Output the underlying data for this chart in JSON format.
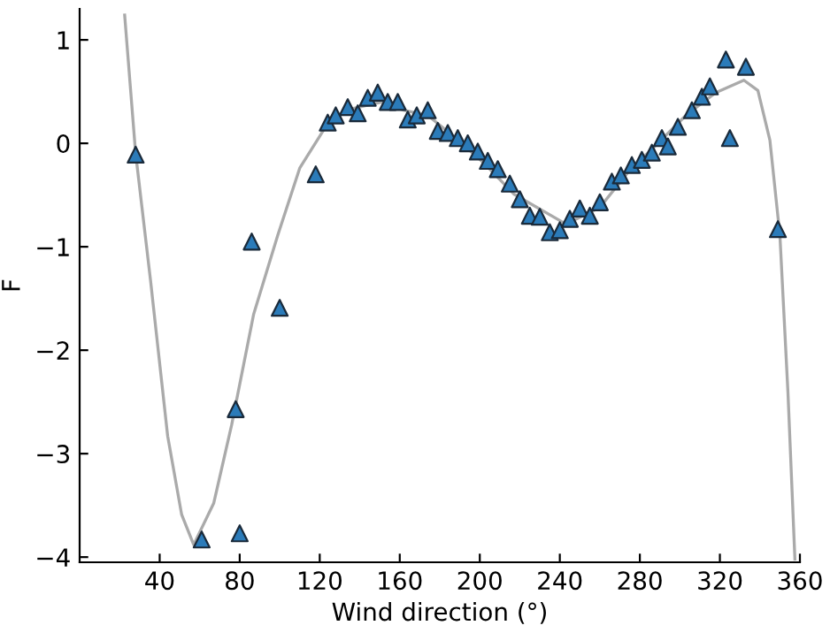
{
  "chart_data": {
    "type": "scatter",
    "xlabel": "Wind direction (°)",
    "ylabel": "F",
    "xlim": [
      0,
      360
    ],
    "ylim": [
      -4.05,
      1.3
    ],
    "xticks": [
      40,
      80,
      120,
      160,
      200,
      240,
      280,
      320,
      360
    ],
    "yticks": [
      {
        "value": -4,
        "label": "−4"
      },
      {
        "value": -3,
        "label": "−3"
      },
      {
        "value": -2,
        "label": "−2"
      },
      {
        "value": -1,
        "label": "−1"
      },
      0,
      1
    ],
    "grid": false,
    "legend": false,
    "series": [
      {
        "marker": "triangle",
        "color": "#2b7bb9",
        "x": [
          28,
          61,
          78,
          80,
          86,
          100,
          118,
          124,
          128,
          134,
          139,
          144,
          149,
          154,
          159,
          164,
          168.5,
          174,
          179,
          184,
          189,
          194,
          199,
          204,
          209,
          215,
          220,
          225,
          230,
          235,
          240,
          245,
          250,
          255,
          260,
          266,
          270.5,
          276,
          281,
          286,
          291,
          294,
          299,
          306,
          311,
          315,
          323,
          325,
          333,
          349
        ],
        "values": [
          -0.11,
          -3.83,
          -2.57,
          -3.77,
          -0.95,
          -1.59,
          -0.3,
          0.2,
          0.27,
          0.35,
          0.29,
          0.44,
          0.49,
          0.4,
          0.4,
          0.23,
          0.27,
          0.32,
          0.12,
          0.1,
          0.05,
          0.0,
          -0.08,
          -0.17,
          -0.25,
          -0.39,
          -0.54,
          -0.7,
          -0.71,
          -0.86,
          -0.84,
          -0.73,
          -0.63,
          -0.7,
          -0.57,
          -0.37,
          -0.31,
          -0.21,
          -0.16,
          -0.09,
          0.05,
          -0.03,
          0.16,
          0.32,
          0.45,
          0.55,
          0.81,
          0.05,
          0.74,
          -0.83
        ]
      },
      {
        "type": "line",
        "marker": "none",
        "line_style": "solid",
        "color": "#aaaaaa",
        "x": [
          22.5,
          28,
          35.4,
          44,
          51,
          57,
          67,
          76,
          87,
          99,
          110,
          122,
          133,
          151,
          162,
          174,
          188,
          202,
          217,
          243,
          260,
          274.5,
          289,
          303,
          318,
          332,
          339,
          345,
          350,
          354,
          357.5
        ],
        "values": [
          1.24,
          -0.1,
          -1.32,
          -2.83,
          -3.59,
          -3.88,
          -3.48,
          -2.72,
          -1.65,
          -0.89,
          -0.24,
          0.13,
          0.32,
          0.4,
          0.32,
          0.27,
          0.05,
          -0.19,
          -0.49,
          -0.78,
          -0.62,
          -0.27,
          0.0,
          0.27,
          0.49,
          0.61,
          0.51,
          0.03,
          -0.89,
          -2.4,
          -4.02
        ]
      }
    ]
  }
}
